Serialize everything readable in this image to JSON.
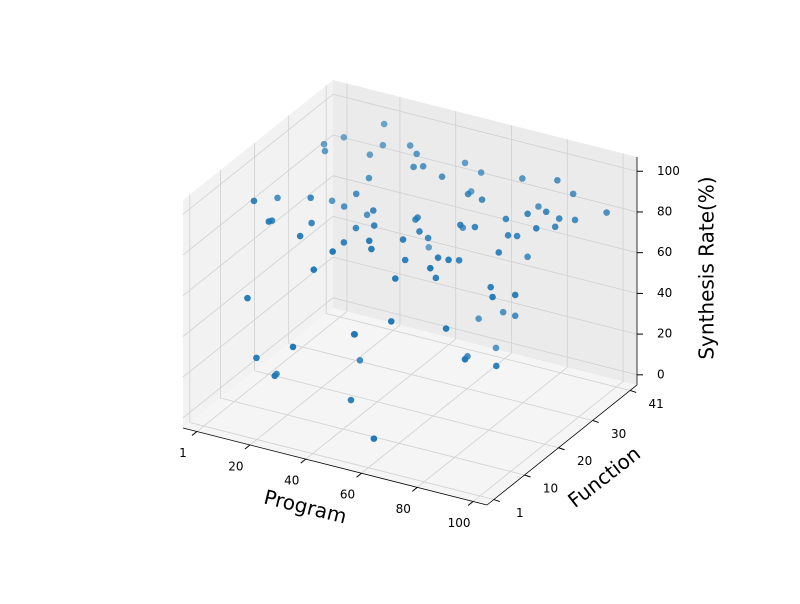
{
  "chart_data": {
    "type": "scatter3d",
    "xlabel": "Program",
    "ylabel": "Function",
    "zlabel": "Synthesis Rate(%)",
    "xlim": [
      -4,
      105
    ],
    "ylim": [
      -1,
      43
    ],
    "zlim": [
      -5,
      107
    ],
    "xticks": [
      1,
      20,
      40,
      60,
      80,
      100
    ],
    "yticks": [
      1,
      10,
      20,
      30,
      41
    ],
    "zticks": [
      0,
      20,
      40,
      60,
      80,
      100
    ],
    "grid": true,
    "series": [
      {
        "color": "#1f77b4",
        "x": [
          5,
          12,
          18,
          22,
          27,
          31,
          35,
          38,
          42,
          45,
          48,
          52,
          55,
          58,
          61,
          64,
          67,
          70,
          73,
          76,
          79,
          82,
          85,
          88,
          91,
          94,
          97,
          99,
          3,
          9,
          15,
          20,
          25,
          29,
          33,
          37,
          41,
          44,
          47,
          50,
          53,
          56,
          60,
          63,
          66,
          69,
          72,
          75,
          78,
          81,
          84,
          87,
          90,
          93,
          96,
          8,
          14,
          19,
          24,
          30,
          36,
          43,
          49,
          54,
          59,
          65,
          71,
          77,
          83,
          89,
          95,
          10,
          17,
          26,
          34,
          46,
          57,
          68,
          74,
          86,
          92,
          6,
          13,
          21,
          28,
          39,
          51,
          62,
          80,
          98
        ],
        "y": [
          33,
          12,
          40,
          25,
          8,
          37,
          19,
          3,
          29,
          15,
          41,
          22,
          6,
          35,
          11,
          27,
          2,
          38,
          17,
          31,
          9,
          24,
          36,
          14,
          4,
          28,
          20,
          39,
          21,
          30,
          5,
          38,
          13,
          26,
          1,
          34,
          18,
          9,
          40,
          23,
          7,
          32,
          16,
          36,
          4,
          27,
          11,
          20,
          33,
          2,
          25,
          39,
          14,
          30,
          8,
          10,
          28,
          35,
          3,
          22,
          17,
          31,
          6,
          39,
          12,
          26,
          19,
          37,
          5,
          24,
          33,
          15,
          7,
          29,
          40,
          2,
          21,
          34,
          10,
          18,
          27,
          38,
          4,
          16,
          23,
          11,
          30,
          1,
          25,
          13
        ],
        "z": [
          92,
          85,
          97,
          78,
          88,
          95,
          15,
          82,
          99,
          90,
          73,
          87,
          94,
          22,
          84,
          96,
          68,
          91,
          80,
          35,
          93,
          86,
          98,
          76,
          55,
          89,
          100,
          83,
          81,
          94,
          28,
          90,
          87,
          75,
          45,
          97,
          92,
          12,
          88,
          84,
          96,
          70,
          91,
          8,
          86,
          95,
          79,
          93,
          62,
          99,
          85,
          88,
          38,
          90,
          82,
          96,
          74,
          89,
          25,
          91,
          83,
          97,
          50,
          87,
          92,
          18,
          94,
          81,
          66,
          99,
          86,
          5,
          93,
          88,
          42,
          95,
          80,
          30,
          91,
          87,
          97,
          89,
          58,
          94,
          20,
          85,
          96,
          10,
          92,
          77
        ]
      }
    ]
  }
}
